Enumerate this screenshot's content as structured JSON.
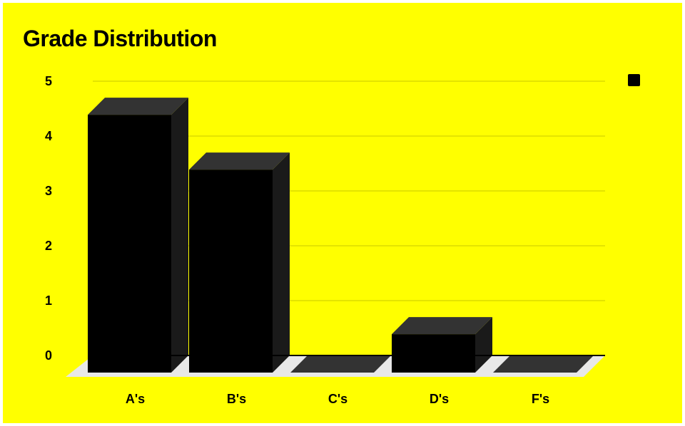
{
  "chart_data": {
    "type": "bar",
    "title": "Grade Distribution",
    "categories": [
      "A's",
      "B's",
      "C's",
      "D's",
      "F's"
    ],
    "series": [
      {
        "values": [
          4.7,
          3.7,
          0,
          0.7,
          0
        ]
      }
    ],
    "yticks": [
      "0",
      "1",
      "2",
      "3",
      "4",
      "5"
    ],
    "ylim": [
      0,
      5
    ],
    "grid": true,
    "legend_position": "top-right",
    "style": "3d",
    "colors": {
      "background": "#ffff00",
      "bar_front": "#000000",
      "bar_top": "#333333",
      "bar_side": "#1a1a1a",
      "floor": "#e8e8e8",
      "grid": "#c9c900",
      "axis": "#000000",
      "legend_swatch": "#000000"
    }
  }
}
